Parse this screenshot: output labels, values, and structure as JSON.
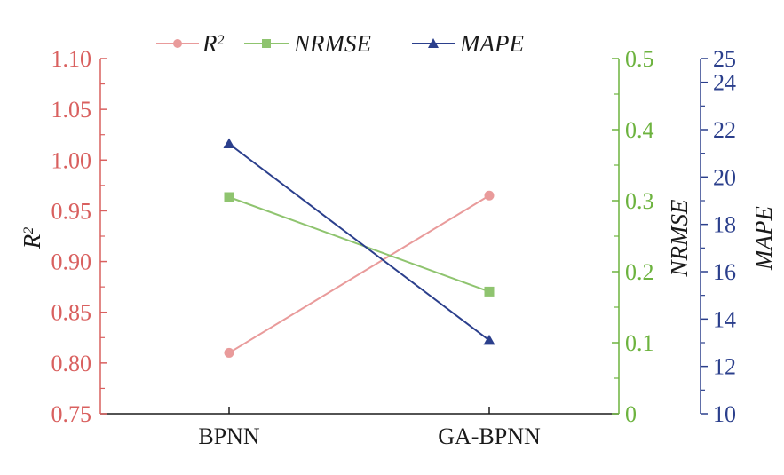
{
  "chart_data": {
    "type": "line",
    "categories": [
      "BPNN",
      "GA-BPNN"
    ],
    "series": [
      {
        "name": "R²",
        "axis": "r2",
        "color": "#e99b9b",
        "marker": "circle",
        "values": [
          0.81,
          0.965
        ]
      },
      {
        "name": "NRMSE",
        "axis": "nrmse",
        "color": "#8fc46f",
        "marker": "square",
        "values": [
          0.305,
          0.172
        ]
      },
      {
        "name": "MAPE",
        "axis": "mape",
        "color": "#2b3f8c",
        "marker": "triangle",
        "values": [
          21.4,
          13.1
        ]
      }
    ],
    "axes": {
      "r2": {
        "label": "R²",
        "color": "#d9605f",
        "lim": [
          0.75,
          1.1
        ],
        "ticks": [
          "0.75",
          "0.80",
          "0.85",
          "0.90",
          "0.95",
          "1.00",
          "1.05",
          "1.10"
        ],
        "tick_values": [
          0.75,
          0.8,
          0.85,
          0.9,
          0.95,
          1.0,
          1.05,
          1.1
        ]
      },
      "nrmse": {
        "label": "NRMSE",
        "color": "#6db33f",
        "lim": [
          0,
          0.5
        ],
        "ticks": [
          "0",
          "0.1",
          "0.2",
          "0.3",
          "0.4",
          "0.5"
        ],
        "tick_values": [
          0,
          0.1,
          0.2,
          0.3,
          0.4,
          0.5
        ]
      },
      "mape": {
        "label": "MAPE",
        "color": "#2b3f8c",
        "lim": [
          10,
          25
        ],
        "ticks": [
          "10",
          "12",
          "14",
          "16",
          "18",
          "20",
          "22",
          "24",
          "25"
        ],
        "tick_values": [
          10,
          12,
          14,
          16,
          18,
          20,
          22,
          24,
          25
        ]
      }
    },
    "legend": {
      "placement": "top",
      "entries": [
        "R²",
        "NRMSE",
        "MAPE"
      ]
    },
    "grid": false
  }
}
